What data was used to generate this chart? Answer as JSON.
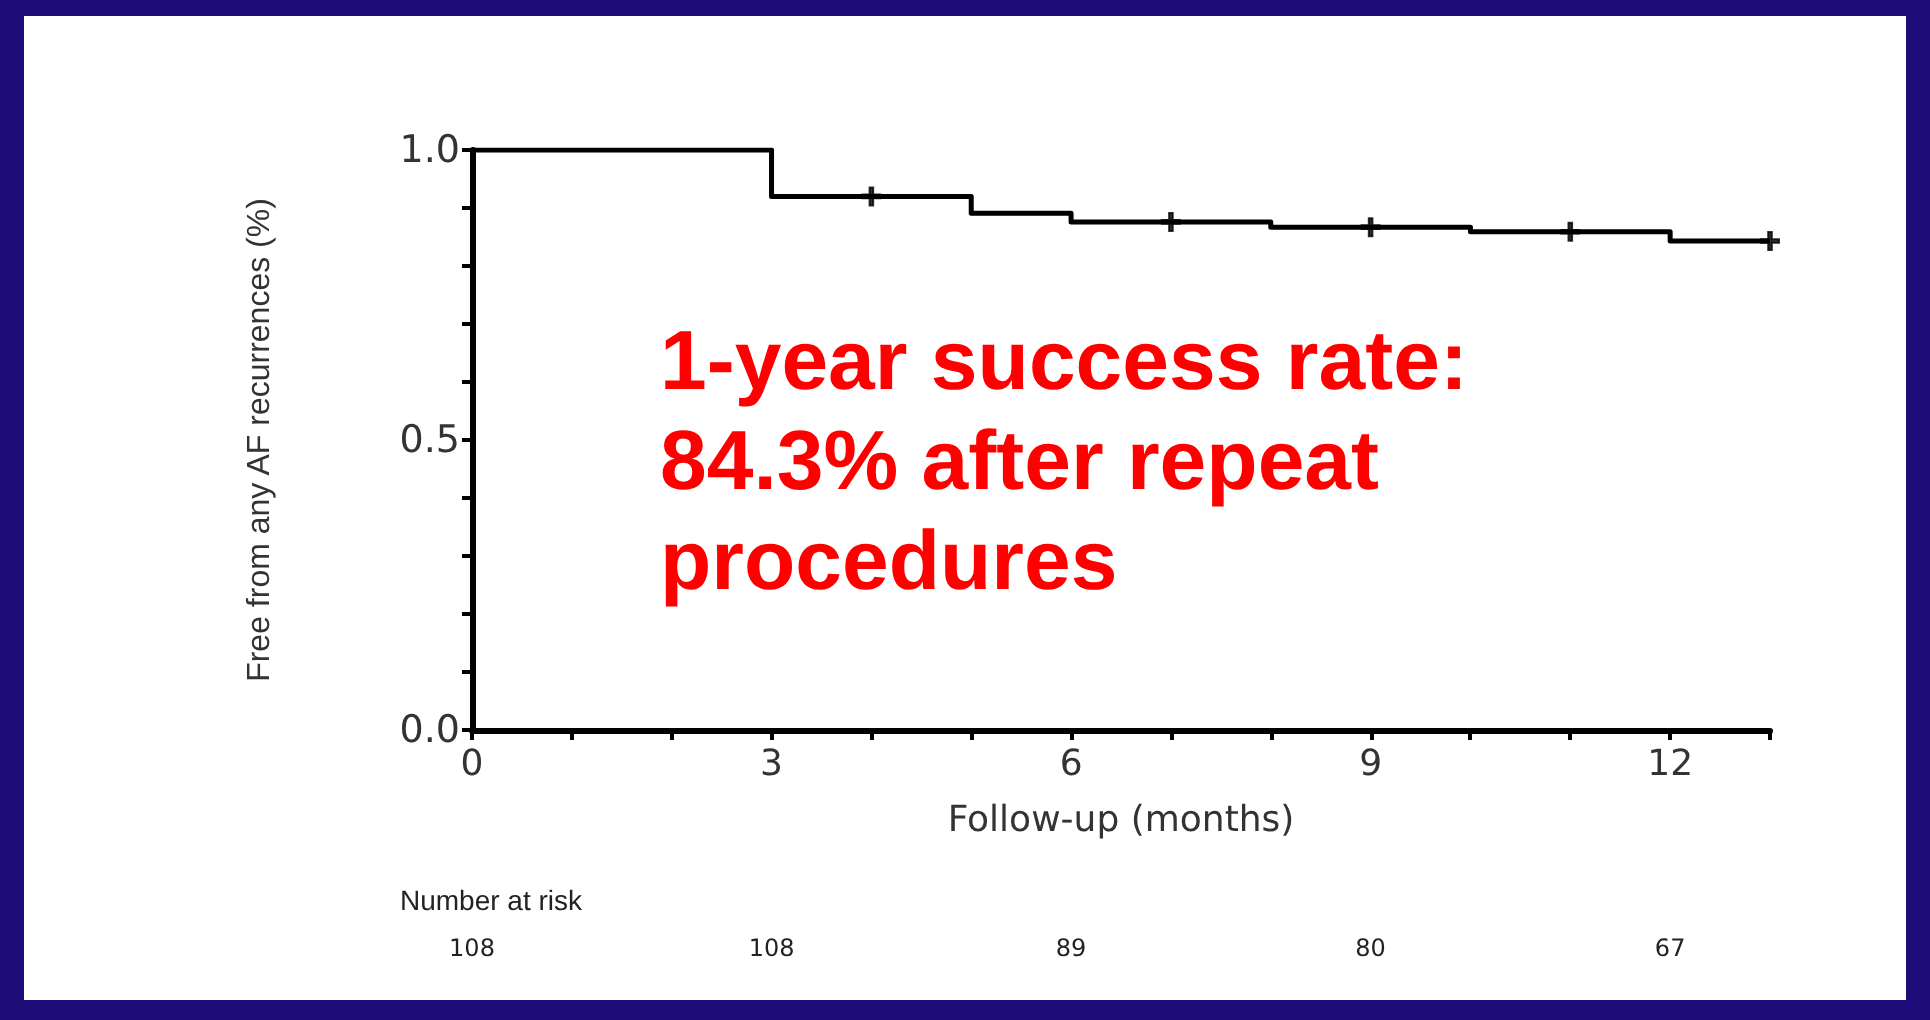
{
  "chart_data": {
    "type": "step",
    "xlabel": "Follow-up (months)",
    "ylabel": "Free from any AF recurrences (%)",
    "xlim": [
      0,
      13
    ],
    "xticks": [
      0,
      {
        "value": 1,
        "label": null
      },
      {
        "value": 2,
        "label": null
      },
      3,
      {
        "value": 4,
        "label": null
      },
      {
        "value": 5,
        "label": null
      },
      6,
      {
        "value": 7,
        "label": null
      },
      {
        "value": 8,
        "label": null
      },
      9,
      {
        "value": 10,
        "label": null
      },
      {
        "value": 11,
        "label": null
      },
      12,
      {
        "value": 13,
        "label": null
      }
    ],
    "ylim": [
      0,
      1
    ],
    "yticks": [
      {
        "value": 0,
        "label": "0.0"
      },
      {
        "value": 0.1,
        "label": null
      },
      {
        "value": 0.2,
        "label": null
      },
      {
        "value": 0.3,
        "label": null
      },
      {
        "value": 0.4,
        "label": null
      },
      {
        "value": 0.5,
        "label": "0.5"
      },
      {
        "value": 0.6,
        "label": null
      },
      {
        "value": 0.7,
        "label": null
      },
      {
        "value": 0.8,
        "label": null
      },
      {
        "value": 0.9,
        "label": null
      },
      {
        "value": 1,
        "label": "1.0"
      }
    ],
    "series": [
      {
        "color": "#000000",
        "x": [
          0,
          3,
          5,
          6,
          8,
          10,
          12,
          13
        ],
        "values": [
          1,
          0.92,
          0.891,
          0.876,
          0.867,
          0.859,
          0.843,
          0.843
        ]
      },
      {
        "type": "scatter",
        "color": "#000000",
        "marker": "cross",
        "x": [
          4,
          7,
          9,
          11,
          13
        ],
        "values": [
          0.92,
          0.876,
          0.867,
          0.859,
          0.843
        ]
      }
    ],
    "grid": false,
    "annotations": [
      "1-year success rate:\n84.3% after repeat\nprocedures",
      "Number at risk",
      "108",
      "108",
      "89",
      "80",
      "67"
    ]
  }
}
